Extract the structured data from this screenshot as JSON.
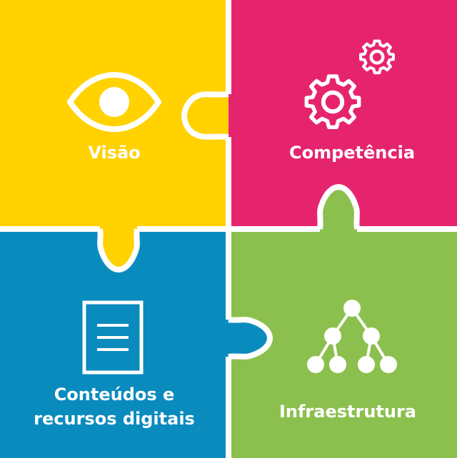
{
  "pieces": {
    "vision": {
      "label": "Visão",
      "color": "#FFD200",
      "icon": "eye-icon"
    },
    "competence": {
      "label": "Competência",
      "color": "#E6246E",
      "icon": "gears-icon"
    },
    "content": {
      "label_line1": "Conteúdos e",
      "label_line2": "recursos digitais",
      "color": "#0A8BBE",
      "icon": "document-icon"
    },
    "infrastructure": {
      "label": "Infraestrutura",
      "color": "#8BC04E",
      "icon": "hierarchy-icon"
    }
  },
  "separator_color": "#ffffff"
}
